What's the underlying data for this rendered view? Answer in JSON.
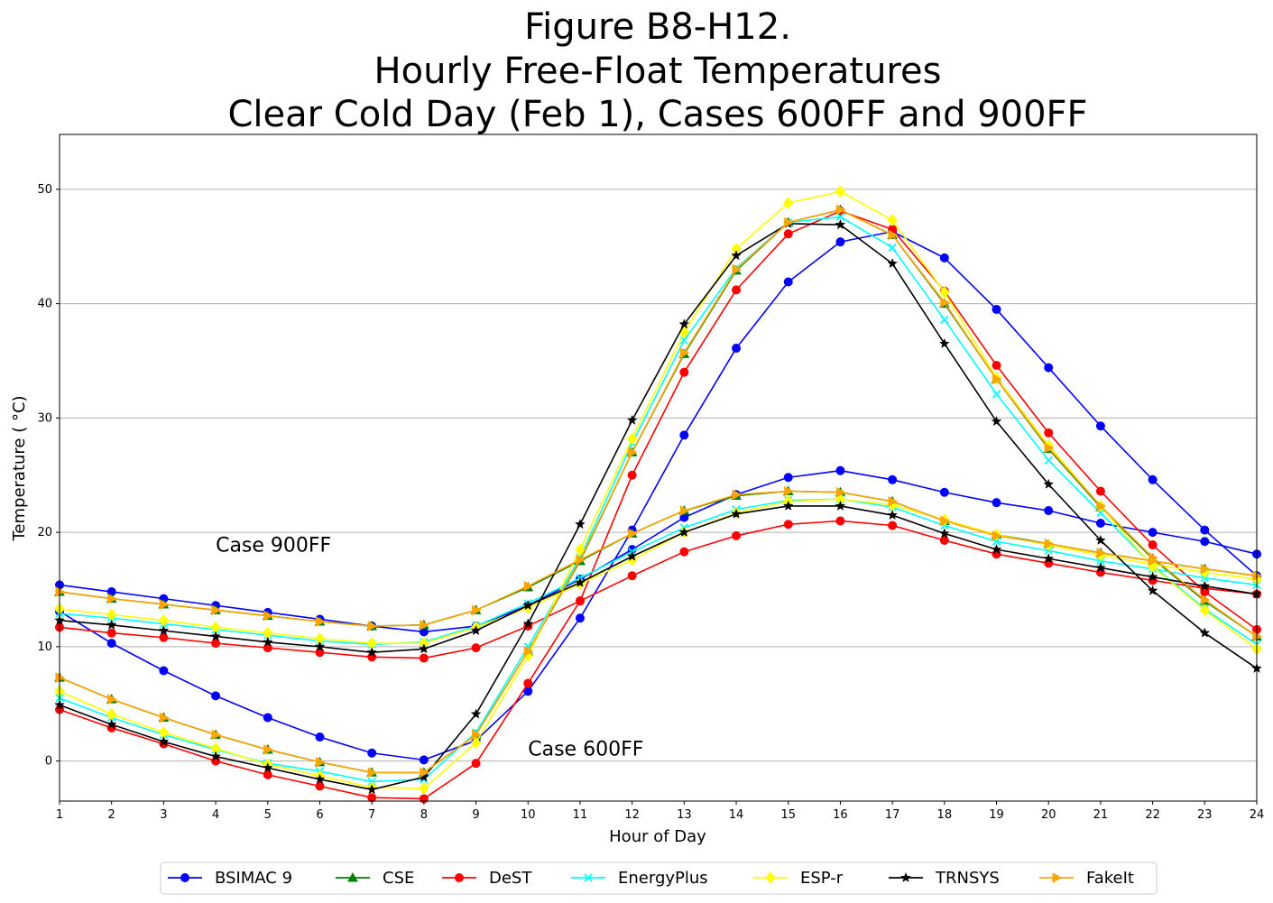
{
  "chart_data": {
    "type": "line",
    "title": [
      "Figure B8-H12.",
      "Hourly Free-Float Temperatures",
      "Clear Cold Day (Feb 1), Cases 600FF and 900FF"
    ],
    "xlabel": "Hour of Day",
    "ylabel": "Temperature ($^\\circ$C)",
    "ylabel_display": "Temperature ( °C)",
    "xlim": [
      1,
      24
    ],
    "ylim": [
      -3.5,
      54.8
    ],
    "x": [
      1,
      2,
      3,
      4,
      5,
      6,
      7,
      8,
      9,
      10,
      11,
      12,
      13,
      14,
      15,
      16,
      17,
      18,
      19,
      20,
      21,
      22,
      23,
      24
    ],
    "xticks": [
      "1",
      "2",
      "3",
      "4",
      "5",
      "6",
      "7",
      "8",
      "9",
      "10",
      "11",
      "12",
      "13",
      "14",
      "15",
      "16",
      "17",
      "18",
      "19",
      "20",
      "21",
      "22",
      "23",
      "24"
    ],
    "yticks": [
      "0",
      "10",
      "20",
      "30",
      "40",
      "50"
    ],
    "ytick_values": [
      0,
      10,
      20,
      30,
      40,
      50
    ],
    "grid": "horizontal",
    "legend_position": "bottom-outside",
    "annotations": [
      {
        "text": "Case 900FF",
        "x": 4,
        "y": 18.3
      },
      {
        "text": "Case 600FF",
        "x": 10,
        "y": 0.5
      }
    ],
    "series": [
      {
        "name": "BSIMAC 9",
        "case": "600FF",
        "color": "#0000ff",
        "marker": "circle",
        "values": [
          13.1,
          10.3,
          7.9,
          5.7,
          3.8,
          2.1,
          0.7,
          0.1,
          1.8,
          6.1,
          12.5,
          20.2,
          28.5,
          36.1,
          41.9,
          45.4,
          46.3,
          44.0,
          39.5,
          34.4,
          29.3,
          24.6,
          20.2,
          16.2
        ]
      },
      {
        "name": "BSIMAC 9",
        "case": "900FF",
        "color": "#0000ff",
        "marker": "circle",
        "values": [
          15.4,
          14.8,
          14.2,
          13.6,
          13.0,
          12.4,
          11.8,
          11.3,
          11.8,
          13.6,
          15.9,
          18.5,
          21.3,
          23.3,
          24.8,
          25.4,
          24.6,
          23.5,
          22.6,
          21.9,
          20.8,
          20.0,
          19.2,
          18.1
        ]
      },
      {
        "name": "CSE",
        "case": "600FF",
        "color": "#008000",
        "marker": "triangle",
        "values": [
          7.3,
          5.4,
          3.8,
          2.3,
          1.0,
          -0.1,
          -1.0,
          -1.0,
          2.3,
          9.6,
          17.5,
          27.0,
          35.6,
          42.9,
          47.1,
          48.2,
          46.0,
          40.0,
          33.4,
          27.3,
          22.2,
          17.7,
          14.0,
          10.9
        ]
      },
      {
        "name": "CSE",
        "case": "900FF",
        "color": "#008000",
        "marker": "triangle",
        "values": [
          14.8,
          14.2,
          13.7,
          13.2,
          12.7,
          12.2,
          11.8,
          11.9,
          13.2,
          15.2,
          17.5,
          19.9,
          21.9,
          23.2,
          23.6,
          23.5,
          22.7,
          21.0,
          19.8,
          19.0,
          18.2,
          17.5,
          16.8,
          16.2
        ]
      },
      {
        "name": "DeST",
        "case": "600FF",
        "color": "#ff0000",
        "marker": "circle",
        "values": [
          4.5,
          2.9,
          1.5,
          0.0,
          -1.2,
          -2.2,
          -3.2,
          -3.3,
          -0.2,
          6.8,
          14.0,
          25.0,
          34.0,
          41.2,
          46.1,
          48.1,
          46.5,
          41.1,
          34.6,
          28.7,
          23.6,
          18.9,
          14.8,
          11.5
        ]
      },
      {
        "name": "DeST",
        "case": "900FF",
        "color": "#ff0000",
        "marker": "circle",
        "values": [
          11.7,
          11.2,
          10.8,
          10.3,
          9.9,
          9.5,
          9.1,
          9.0,
          9.9,
          11.8,
          14.0,
          16.2,
          18.3,
          19.7,
          20.7,
          21.0,
          20.6,
          19.3,
          18.1,
          17.3,
          16.5,
          15.8,
          15.1,
          14.6
        ]
      },
      {
        "name": "EnergyPlus",
        "case": "600FF",
        "color": "#00ffff",
        "marker": "x",
        "values": [
          5.5,
          3.8,
          2.3,
          1.0,
          -0.2,
          -0.9,
          -1.8,
          -1.6,
          2.5,
          10.0,
          17.8,
          27.8,
          36.8,
          43.1,
          47.1,
          47.6,
          44.9,
          38.6,
          32.1,
          26.3,
          21.7,
          17.1,
          13.3,
          10.2
        ]
      },
      {
        "name": "EnergyPlus",
        "case": "900FF",
        "color": "#00ffff",
        "marker": "x",
        "values": [
          12.9,
          12.5,
          12.0,
          11.5,
          11.0,
          10.5,
          10.2,
          10.4,
          11.8,
          13.8,
          16.0,
          18.3,
          20.4,
          22.0,
          22.8,
          22.9,
          22.2,
          20.6,
          19.2,
          18.4,
          17.5,
          16.8,
          16.0,
          15.4
        ]
      },
      {
        "name": "ESP-r",
        "case": "600FF",
        "color": "#ffff00",
        "marker": "diamond",
        "values": [
          6.1,
          4.1,
          2.5,
          1.1,
          -0.3,
          -1.3,
          -2.3,
          -2.4,
          1.6,
          9.2,
          18.5,
          28.2,
          37.5,
          44.8,
          48.8,
          49.8,
          47.3,
          41.0,
          33.5,
          27.6,
          22.3,
          17.0,
          13.2,
          9.8
        ]
      },
      {
        "name": "ESP-r",
        "case": "900FF",
        "color": "#ffff00",
        "marker": "diamond",
        "values": [
          13.3,
          12.8,
          12.3,
          11.7,
          11.2,
          10.7,
          10.3,
          10.3,
          11.7,
          13.4,
          15.5,
          17.6,
          20.0,
          21.7,
          22.7,
          22.9,
          22.4,
          21.1,
          19.8,
          18.9,
          18.0,
          17.2,
          16.5,
          15.9
        ]
      },
      {
        "name": "TRNSYS",
        "case": "600FF",
        "color": "#000000",
        "marker": "star",
        "values": [
          4.9,
          3.2,
          1.7,
          0.4,
          -0.6,
          -1.6,
          -2.5,
          -1.4,
          4.1,
          12.0,
          20.7,
          29.8,
          38.2,
          44.2,
          47.0,
          46.9,
          43.5,
          36.5,
          29.7,
          24.2,
          19.3,
          14.9,
          11.2,
          8.1
        ]
      },
      {
        "name": "TRNSYS",
        "case": "900FF",
        "color": "#000000",
        "marker": "star",
        "values": [
          12.3,
          11.9,
          11.4,
          10.9,
          10.4,
          10.0,
          9.5,
          9.8,
          11.4,
          13.6,
          15.6,
          17.9,
          20.0,
          21.6,
          22.3,
          22.3,
          21.5,
          19.9,
          18.5,
          17.7,
          16.9,
          16.1,
          15.3,
          14.6
        ]
      },
      {
        "name": "FakeIt",
        "case": "600FF",
        "color": "#ffa500",
        "marker": "triangle-right",
        "values": [
          7.3,
          5.4,
          3.8,
          2.3,
          1.0,
          -0.1,
          -1.0,
          -1.0,
          2.3,
          9.6,
          17.6,
          27.0,
          35.7,
          43.0,
          47.1,
          48.2,
          46.0,
          40.1,
          33.4,
          27.4,
          22.3,
          17.8,
          14.1,
          10.9
        ]
      },
      {
        "name": "FakeIt",
        "case": "900FF",
        "color": "#ffa500",
        "marker": "triangle-right",
        "values": [
          14.8,
          14.2,
          13.7,
          13.2,
          12.7,
          12.2,
          11.8,
          11.9,
          13.2,
          15.3,
          17.6,
          19.9,
          21.9,
          23.3,
          23.6,
          23.5,
          22.7,
          21.0,
          19.7,
          19.0,
          18.2,
          17.5,
          16.8,
          16.2
        ]
      }
    ],
    "legend": [
      "BSIMAC 9",
      "CSE",
      "DeST",
      "EnergyPlus",
      "ESP-r",
      "TRNSYS",
      "FakeIt"
    ]
  }
}
